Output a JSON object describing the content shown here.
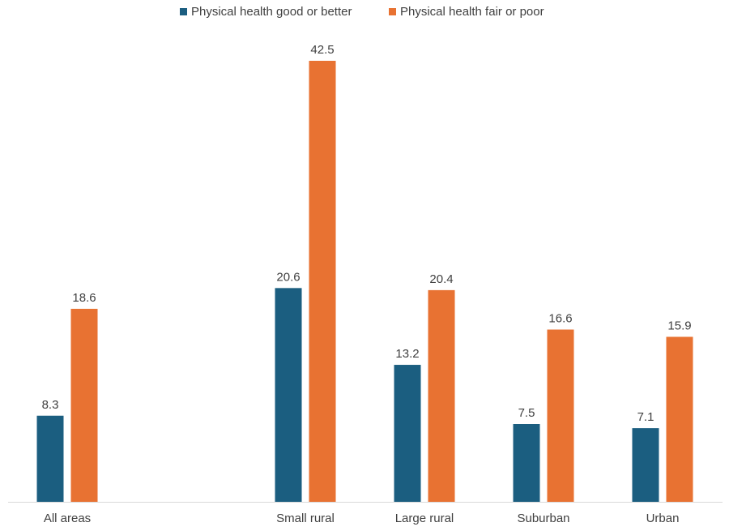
{
  "chart_data": {
    "type": "bar",
    "categories": [
      "All areas",
      "Small rural",
      "Large rural",
      "Suburban",
      "Urban"
    ],
    "series": [
      {
        "name": "Physical health good or better",
        "values": [
          8.3,
          20.6,
          13.2,
          7.5,
          7.1
        ],
        "color": "#1b5e80"
      },
      {
        "name": "Physical health fair or poor",
        "values": [
          18.6,
          42.5,
          20.4,
          16.6,
          15.9
        ],
        "color": "#e87232"
      }
    ],
    "ylim": [
      0,
      45
    ],
    "grid": false,
    "legend_position": "top-center",
    "data_labels": true,
    "colors": {
      "axis": "#d9d9d9",
      "label_text": "#404040"
    }
  }
}
